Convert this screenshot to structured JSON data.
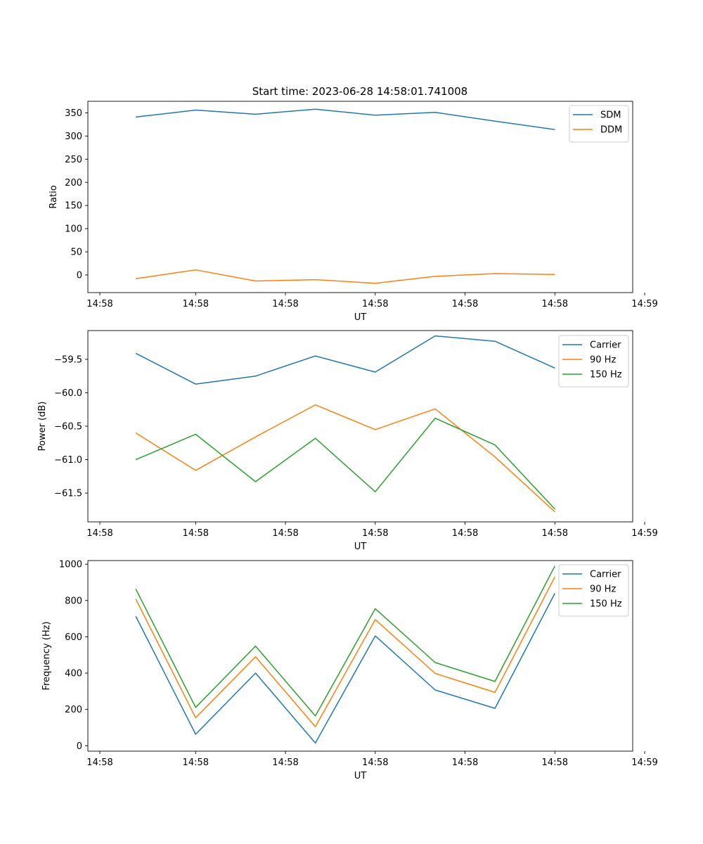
{
  "figure_title": "Start time: 2023-06-28 14:58:01.741008",
  "chart_data": [
    {
      "type": "line",
      "title": "Start time: 2023-06-28 14:58:01.741008",
      "xlabel": "UT",
      "ylabel": "Ratio",
      "x": [
        1,
        2,
        3,
        4,
        5,
        6,
        7,
        8
      ],
      "xlim": [
        0.2,
        9.3
      ],
      "x_ticks": [
        0.4,
        2.0,
        3.5,
        5.0,
        6.5,
        8.0,
        9.5
      ],
      "x_tick_labels": [
        "14:58",
        "14:58",
        "14:58",
        "14:58",
        "14:58",
        "14:58",
        "14:59"
      ],
      "ylim": [
        -38,
        375
      ],
      "y_ticks": [
        0,
        50,
        100,
        150,
        200,
        250,
        300,
        350
      ],
      "y_tick_labels": [
        "0",
        "50",
        "100",
        "150",
        "200",
        "250",
        "300",
        "350"
      ],
      "legend_position": "top-right",
      "grid": false,
      "series": [
        {
          "name": "SDM",
          "color": "#1f77b4",
          "values": [
            341,
            356,
            347,
            358,
            345,
            351,
            332,
            314
          ]
        },
        {
          "name": "DDM",
          "color": "#ff7f0e",
          "values": [
            -8,
            11,
            -13,
            -10,
            -18,
            -3,
            3,
            1
          ]
        }
      ]
    },
    {
      "type": "line",
      "title": "",
      "xlabel": "UT",
      "ylabel": "Power (dB)",
      "x": [
        1,
        2,
        3,
        4,
        5,
        6,
        7,
        8
      ],
      "xlim": [
        0.2,
        9.3
      ],
      "x_ticks": [
        0.4,
        2.0,
        3.5,
        5.0,
        6.5,
        8.0,
        9.5
      ],
      "x_tick_labels": [
        "14:58",
        "14:58",
        "14:58",
        "14:58",
        "14:58",
        "14:58",
        "14:59"
      ],
      "ylim": [
        -61.93,
        -59.07
      ],
      "y_ticks": [
        -59.5,
        -60.0,
        -60.5,
        -61.0,
        -61.5
      ],
      "y_tick_labels": [
        "−59.5",
        "−60.0",
        "−60.5",
        "−61.0",
        "−61.5"
      ],
      "legend_position": "top-right",
      "grid": false,
      "series": [
        {
          "name": "Carrier",
          "color": "#1f77b4",
          "values": [
            -59.41,
            -59.87,
            -59.75,
            -59.45,
            -59.69,
            -59.15,
            -59.23,
            -59.63
          ]
        },
        {
          "name": "90 Hz",
          "color": "#ff7f0e",
          "values": [
            -60.6,
            -61.16,
            -60.66,
            -60.18,
            -60.55,
            -60.24,
            -60.96,
            -61.78
          ]
        },
        {
          "name": "150 Hz",
          "color": "#2ca02c",
          "values": [
            -61.0,
            -60.62,
            -61.33,
            -60.68,
            -61.48,
            -60.38,
            -60.78,
            -61.74
          ]
        }
      ]
    },
    {
      "type": "line",
      "title": "",
      "xlabel": "UT",
      "ylabel": "Frequency (Hz)",
      "x": [
        1,
        2,
        3,
        4,
        5,
        6,
        7,
        8
      ],
      "xlim": [
        0.2,
        9.3
      ],
      "x_ticks": [
        0.4,
        2.0,
        3.5,
        5.0,
        6.5,
        8.0,
        9.5
      ],
      "x_tick_labels": [
        "14:58",
        "14:58",
        "14:58",
        "14:58",
        "14:58",
        "14:58",
        "14:59"
      ],
      "ylim": [
        -30,
        1020
      ],
      "y_ticks": [
        0,
        200,
        400,
        600,
        800,
        1000
      ],
      "y_tick_labels": [
        "0",
        "200",
        "400",
        "600",
        "800",
        "1000"
      ],
      "legend_position": "top-right",
      "grid": false,
      "series": [
        {
          "name": "Carrier",
          "color": "#1f77b4",
          "values": [
            713,
            63,
            400,
            15,
            605,
            307,
            206,
            840
          ]
        },
        {
          "name": "90 Hz",
          "color": "#ff7f0e",
          "values": [
            808,
            154,
            490,
            105,
            695,
            398,
            294,
            930
          ]
        },
        {
          "name": "150 Hz",
          "color": "#2ca02c",
          "values": [
            864,
            211,
            549,
            164,
            755,
            458,
            354,
            990
          ]
        }
      ]
    }
  ]
}
